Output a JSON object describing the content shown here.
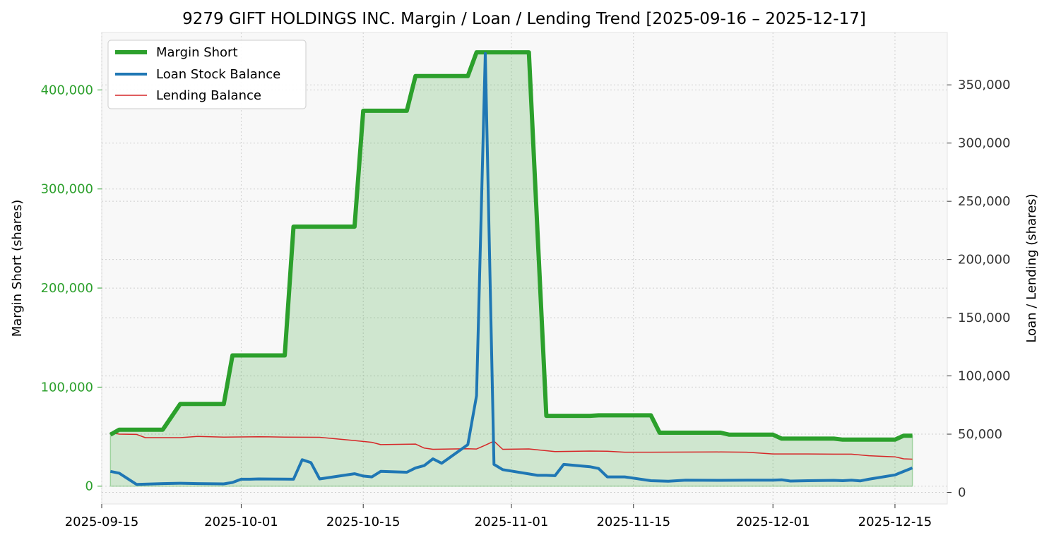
{
  "chart_data": {
    "type": "line",
    "title": "9279 GIFT HOLDINGS INC. Margin / Loan / Lending Trend [2025-09-16 – 2025-12-17]",
    "x_axis": {
      "type": "date",
      "range": [
        "2025-09-15",
        "2025-12-21"
      ],
      "ticks": [
        "2025-09-15",
        "2025-10-01",
        "2025-10-15",
        "2025-11-01",
        "2025-11-15",
        "2025-12-01",
        "2025-12-15"
      ]
    },
    "y_left": {
      "label": "Margin Short (shares)",
      "range": [
        -18000,
        458000
      ],
      "ticks": [
        0,
        100000,
        200000,
        300000,
        400000
      ],
      "tick_labels": [
        "0",
        "100,000",
        "200,000",
        "300,000",
        "400,000"
      ],
      "color": "#2ca02c"
    },
    "y_right": {
      "label": "Loan / Lending (shares)",
      "range": [
        -10000,
        395000
      ],
      "ticks": [
        0,
        50000,
        100000,
        150000,
        200000,
        250000,
        300000,
        350000
      ],
      "tick_labels": [
        "0",
        "50,000",
        "100,000",
        "150,000",
        "200,000",
        "250,000",
        "300,000",
        "350,000"
      ],
      "color": "#333333"
    },
    "grid": true,
    "legend_position": "top-left",
    "series": [
      {
        "name": "Margin Short",
        "axis": "left",
        "color": "#2ca02c",
        "fill": true,
        "points": [
          [
            "2025-09-16",
            52000
          ],
          [
            "2025-09-17",
            57000
          ],
          [
            "2025-09-22",
            57000
          ],
          [
            "2025-09-24",
            83000
          ],
          [
            "2025-09-29",
            83000
          ],
          [
            "2025-09-30",
            132000
          ],
          [
            "2025-10-06",
            132000
          ],
          [
            "2025-10-07",
            262000
          ],
          [
            "2025-10-14",
            262000
          ],
          [
            "2025-10-15",
            379000
          ],
          [
            "2025-10-20",
            379000
          ],
          [
            "2025-10-21",
            414000
          ],
          [
            "2025-10-27",
            414000
          ],
          [
            "2025-10-28",
            438000
          ],
          [
            "2025-11-03",
            438000
          ],
          [
            "2025-11-05",
            71000
          ],
          [
            "2025-11-10",
            71000
          ],
          [
            "2025-11-11",
            71500
          ],
          [
            "2025-11-17",
            71500
          ],
          [
            "2025-11-18",
            54000
          ],
          [
            "2025-11-25",
            54000
          ],
          [
            "2025-11-26",
            52000
          ],
          [
            "2025-12-01",
            52000
          ],
          [
            "2025-12-02",
            48000
          ],
          [
            "2025-12-08",
            48000
          ],
          [
            "2025-12-09",
            47000
          ],
          [
            "2025-12-15",
            47000
          ],
          [
            "2025-12-16",
            51000
          ],
          [
            "2025-12-17",
            51000
          ]
        ]
      },
      {
        "name": "Loan Stock Balance",
        "axis": "right",
        "color": "#1f77b4",
        "points": [
          [
            "2025-09-16",
            18000
          ],
          [
            "2025-09-17",
            16500
          ],
          [
            "2025-09-19",
            6800
          ],
          [
            "2025-09-22",
            7500
          ],
          [
            "2025-09-24",
            7800
          ],
          [
            "2025-09-26",
            7500
          ],
          [
            "2025-09-29",
            7300
          ],
          [
            "2025-09-30",
            8500
          ],
          [
            "2025-10-01",
            11300
          ],
          [
            "2025-10-02",
            11300
          ],
          [
            "2025-10-03",
            11500
          ],
          [
            "2025-10-06",
            11400
          ],
          [
            "2025-10-07",
            11300
          ],
          [
            "2025-10-08",
            28000
          ],
          [
            "2025-10-09",
            25500
          ],
          [
            "2025-10-10",
            11500
          ],
          [
            "2025-10-14",
            16000
          ],
          [
            "2025-10-15",
            14000
          ],
          [
            "2025-10-16",
            13300
          ],
          [
            "2025-10-17",
            18000
          ],
          [
            "2025-10-20",
            17300
          ],
          [
            "2025-10-21",
            21000
          ],
          [
            "2025-10-22",
            23000
          ],
          [
            "2025-10-23",
            28800
          ],
          [
            "2025-10-24",
            25000
          ],
          [
            "2025-10-27",
            41000
          ],
          [
            "2025-10-28",
            83000
          ],
          [
            "2025-10-29",
            377000
          ],
          [
            "2025-10-30",
            24000
          ],
          [
            "2025-10-31",
            19500
          ],
          [
            "2025-11-04",
            14600
          ],
          [
            "2025-11-05",
            14600
          ],
          [
            "2025-11-06",
            14300
          ],
          [
            "2025-11-07",
            24000
          ],
          [
            "2025-11-10",
            22000
          ],
          [
            "2025-11-11",
            20500
          ],
          [
            "2025-11-12",
            13300
          ],
          [
            "2025-11-14",
            13300
          ],
          [
            "2025-11-17",
            10000
          ],
          [
            "2025-11-19",
            9500
          ],
          [
            "2025-11-21",
            10500
          ],
          [
            "2025-11-25",
            10300
          ],
          [
            "2025-11-28",
            10500
          ],
          [
            "2025-12-01",
            10500
          ],
          [
            "2025-12-02",
            10800
          ],
          [
            "2025-12-03",
            9700
          ],
          [
            "2025-12-05",
            10000
          ],
          [
            "2025-12-08",
            10300
          ],
          [
            "2025-12-09",
            10000
          ],
          [
            "2025-12-10",
            10500
          ],
          [
            "2025-12-11",
            9800
          ],
          [
            "2025-12-12",
            11300
          ],
          [
            "2025-12-15",
            15000
          ],
          [
            "2025-12-17",
            21000
          ]
        ]
      },
      {
        "name": "Lending Balance",
        "axis": "right",
        "color": "#d62728",
        "points": [
          [
            "2025-09-16",
            51500
          ],
          [
            "2025-09-17",
            50000
          ],
          [
            "2025-09-19",
            49800
          ],
          [
            "2025-09-20",
            47000
          ],
          [
            "2025-09-24",
            47000
          ],
          [
            "2025-09-26",
            48000
          ],
          [
            "2025-09-29",
            47500
          ],
          [
            "2025-10-03",
            47800
          ],
          [
            "2025-10-06",
            47500
          ],
          [
            "2025-10-10",
            47300
          ],
          [
            "2025-10-14",
            44500
          ],
          [
            "2025-10-16",
            43000
          ],
          [
            "2025-10-17",
            41000
          ],
          [
            "2025-10-21",
            41500
          ],
          [
            "2025-10-22",
            38000
          ],
          [
            "2025-10-23",
            37000
          ],
          [
            "2025-10-27",
            37500
          ],
          [
            "2025-10-28",
            37200
          ],
          [
            "2025-10-29",
            40500
          ],
          [
            "2025-10-30",
            44000
          ],
          [
            "2025-10-31",
            37000
          ],
          [
            "2025-11-03",
            37300
          ],
          [
            "2025-11-04",
            36500
          ],
          [
            "2025-11-06",
            35000
          ],
          [
            "2025-11-10",
            35500
          ],
          [
            "2025-11-12",
            35300
          ],
          [
            "2025-11-14",
            34500
          ],
          [
            "2025-11-17",
            34500
          ],
          [
            "2025-11-25",
            34700
          ],
          [
            "2025-11-28",
            34500
          ],
          [
            "2025-12-01",
            33000
          ],
          [
            "2025-12-05",
            33000
          ],
          [
            "2025-12-08",
            32800
          ],
          [
            "2025-12-10",
            32800
          ],
          [
            "2025-12-12",
            31500
          ],
          [
            "2025-12-15",
            30500
          ],
          [
            "2025-12-16",
            28800
          ],
          [
            "2025-12-17",
            28500
          ]
        ]
      }
    ]
  }
}
